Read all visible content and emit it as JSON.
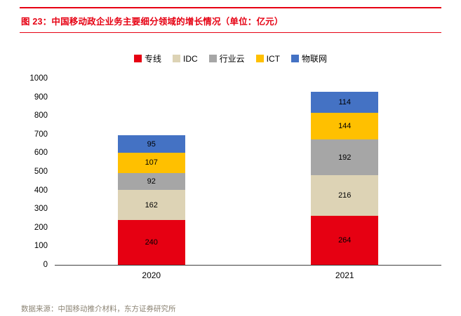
{
  "title": "图 23：中国移动政企业务主要细分领域的增长情况（单位：亿元）",
  "footer": {
    "source": "数据来源：中国移动推介材料，东方证券研究所"
  },
  "accent_color": "#e60012",
  "chart_data": {
    "type": "bar",
    "stacked": true,
    "title": "图 23：中国移动政企业务主要细分领域的增长情况（单位：亿元）",
    "categories": [
      "2020",
      "2021"
    ],
    "series": [
      {
        "name": "专线",
        "color": "#e60012",
        "values": [
          240,
          264
        ]
      },
      {
        "name": "IDC",
        "color": "#ddd3b5",
        "values": [
          162,
          216
        ]
      },
      {
        "name": "行业云",
        "color": "#a6a6a6",
        "values": [
          92,
          192
        ]
      },
      {
        "name": "ICT",
        "color": "#ffc000",
        "values": [
          107,
          144
        ]
      },
      {
        "name": "物联网",
        "color": "#4472c4",
        "values": [
          95,
          114
        ]
      }
    ],
    "totals": [
      696,
      930
    ],
    "xlabel": "",
    "ylabel": "",
    "ylim": [
      0,
      1000
    ],
    "ytick_step": 100,
    "grid": false,
    "legend_position": "top",
    "value_labels": "inside"
  }
}
